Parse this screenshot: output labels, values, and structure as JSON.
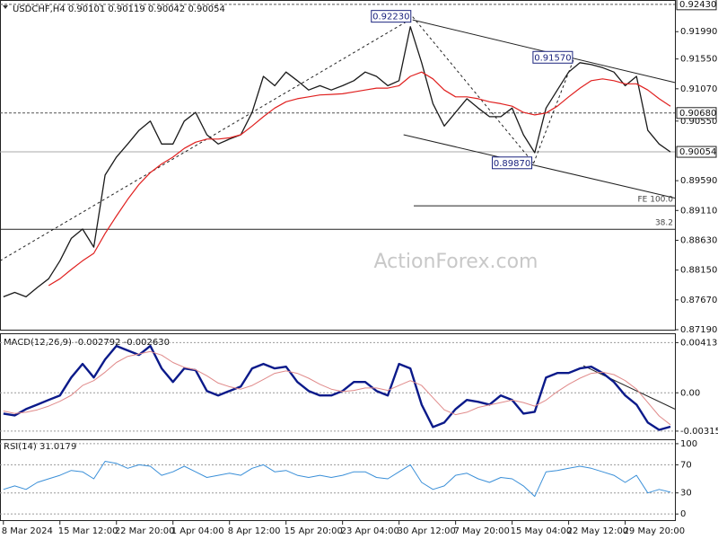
{
  "chart_data": [
    {
      "type": "line",
      "title": "USDCHF,H4  0.90101 0.90119 0.90042 0.90054",
      "x": [
        0,
        1,
        2,
        3,
        4,
        5,
        6,
        7,
        8,
        9,
        10,
        11,
        12,
        13,
        14,
        15,
        16,
        17,
        18,
        19,
        20,
        21,
        22,
        23,
        24,
        25,
        26,
        27,
        28,
        29,
        30,
        31,
        32,
        33,
        34,
        35,
        36,
        37,
        38,
        39,
        40,
        41,
        42,
        43,
        44,
        45,
        46,
        47,
        48,
        49,
        50,
        51,
        52,
        53,
        54,
        55,
        56,
        57,
        58,
        59
      ],
      "xlim": [
        -0.3,
        59.4
      ],
      "xticks": [
        {
          "value": 0,
          "label": "8 Mar 2024"
        },
        {
          "value": 5,
          "label": "15 Mar 12:00"
        },
        {
          "value": 10,
          "label": "22 Mar 20:00"
        },
        {
          "value": 15,
          "label": "1 Apr 04:00"
        },
        {
          "value": 20,
          "label": "8 Apr 12:00"
        },
        {
          "value": 25,
          "label": "15 Apr 20:00"
        },
        {
          "value": 30,
          "label": "23 Apr 04:00"
        },
        {
          "value": 35,
          "label": "30 Apr 12:00"
        },
        {
          "value": 40,
          "label": "7 May 20:00"
        },
        {
          "value": 45,
          "label": "15 May 04:00"
        },
        {
          "value": 50,
          "label": "22 May 12:00"
        },
        {
          "value": 55,
          "label": "29 May 20:00"
        }
      ],
      "ylim": [
        0.8719,
        0.925
      ],
      "yticks": [
        {
          "value": 0.9199,
          "label": "0.91990"
        },
        {
          "value": 0.9155,
          "label": "0.91550"
        },
        {
          "value": 0.9107,
          "label": "0.91070"
        },
        {
          "value": 0.9055,
          "label": "0.90550"
        },
        {
          "value": 0.8959,
          "label": "0.89590"
        },
        {
          "value": 0.8911,
          "label": "0.89110"
        },
        {
          "value": 0.8863,
          "label": "0.88630"
        },
        {
          "value": 0.8815,
          "label": "0.88150"
        },
        {
          "value": 0.8767,
          "label": "0.87670"
        },
        {
          "value": 0.8719,
          "label": "0.87190"
        }
      ],
      "grid": false,
      "series": [
        {
          "color": "#1a1a1a",
          "width": 1.3,
          "values": [
            0.8772,
            0.8779,
            0.8772,
            0.8787,
            0.8801,
            0.883,
            0.8866,
            0.8881,
            0.8852,
            0.8968,
            0.8997,
            0.9018,
            0.904,
            0.9055,
            0.9018,
            0.9018,
            0.9055,
            0.9069,
            0.9033,
            0.9018,
            0.9026,
            0.9033,
            0.9069,
            0.9127,
            0.9112,
            0.9134,
            0.912,
            0.9105,
            0.9112,
            0.9105,
            0.9112,
            0.912,
            0.9134,
            0.9127,
            0.9112,
            0.912,
            0.9207,
            0.9149,
            0.9083,
            0.9047,
            0.9069,
            0.9091,
            0.9076,
            0.9062,
            0.9062,
            0.9076,
            0.9033,
            0.9004,
            0.9076,
            0.9105,
            0.9134,
            0.9149,
            0.9146,
            0.9141,
            0.9134,
            0.9112,
            0.9127,
            0.904,
            0.9018,
            0.90054
          ]
        },
        {
          "color": "#e0201f",
          "width": 1.2,
          "values": [
            null,
            null,
            null,
            null,
            0.879,
            0.8801,
            0.8816,
            0.883,
            0.8842,
            0.8874,
            0.8902,
            0.8929,
            0.8953,
            0.8972,
            0.8986,
            0.8997,
            0.9011,
            0.9021,
            0.9026,
            0.9026,
            0.9028,
            0.9033,
            0.9047,
            0.9062,
            0.9076,
            0.9086,
            0.9091,
            0.9094,
            0.9097,
            0.9098,
            0.9099,
            0.9102,
            0.9105,
            0.9108,
            0.9108,
            0.9112,
            0.9127,
            0.9134,
            0.9123,
            0.9105,
            0.9094,
            0.9094,
            0.9091,
            0.9086,
            0.9083,
            0.9079,
            0.9069,
            0.9065,
            0.9068,
            0.9079,
            0.9094,
            0.9108,
            0.912,
            0.9123,
            0.912,
            0.9115,
            0.9115,
            0.9105,
            0.9091,
            0.9079
          ]
        }
      ],
      "levels": [
        {
          "value": 0.9243,
          "label": "0.92430",
          "style": "dashed"
        },
        {
          "value": 0.9068,
          "label": "0.90680",
          "style": "dashed"
        },
        {
          "value": 0.90054,
          "label": "0.90054",
          "style": "solid"
        }
      ],
      "fib_levels": [
        {
          "y": 0.89184,
          "text": "FE 100.0",
          "x": [
            36.3,
            59.4
          ]
        },
        {
          "y": 0.88807,
          "text": "38.2",
          "x": [
            -0.3,
            59.4
          ]
        }
      ],
      "trendlines": [
        {
          "x": [
            -0.3,
            36.2
          ],
          "y": [
            0.883,
            0.9221
          ],
          "style": "dashed"
        },
        {
          "x": [
            36.2,
            46.9
          ],
          "y": [
            0.9223,
            0.8987
          ],
          "style": "dashed"
        },
        {
          "x": [
            46.9,
            50.5
          ],
          "y": [
            0.8987,
            0.9157
          ],
          "style": "dashed"
        },
        {
          "x": [
            36.2,
            59.4
          ],
          "y": [
            0.9218,
            0.9117
          ],
          "style": "solid"
        },
        {
          "x": [
            35.4,
            59.4
          ],
          "y": [
            0.9033,
            0.8931
          ],
          "style": "solid"
        }
      ],
      "annotations": [
        {
          "text": "0.92230",
          "x": 36.2,
          "y": 0.9223
        },
        {
          "text": "0.91570",
          "x": 50.5,
          "y": 0.9157
        },
        {
          "text": "0.89870",
          "x": 46.9,
          "y": 0.8987
        }
      ],
      "watermark": "ActionForex.com"
    },
    {
      "type": "line",
      "title": "MACD(12,26,9) -0.002792 -0.002630",
      "ylim": [
        -0.0039,
        0.0049
      ],
      "yticks": [
        0.004132,
        {
          "value": 0,
          "label": "0.00"
        },
        -0.003154
      ],
      "grid": true,
      "series": [
        {
          "color": "#0b1a8a",
          "width": 2.4,
          "values": [
            -0.00171,
            -0.00186,
            -0.00134,
            -0.00097,
            -0.00059,
            -0.00022,
            0.00126,
            0.00238,
            0.00126,
            0.00275,
            0.00386,
            0.00349,
            0.00312,
            0.00386,
            0.00201,
            0.00089,
            0.00201,
            0.00186,
            0.00015,
            -0.00022,
            0.00015,
            0.00052,
            0.00201,
            0.00238,
            0.00201,
            0.00215,
            0.00089,
            0.00015,
            -0.00022,
            -0.00022,
            0.00015,
            0.00089,
            0.00089,
            0.00015,
            -0.00022,
            0.00238,
            0.00201,
            -0.00097,
            -0.00282,
            -0.00245,
            -0.00134,
            -0.00059,
            -0.00074,
            -0.00097,
            -0.00022,
            -0.00059,
            -0.00171,
            -0.00156,
            0.00126,
            0.00163,
            0.00163,
            0.00201,
            0.00215,
            0.00163,
            0.00089,
            -0.00022,
            -0.00097,
            -0.00245,
            -0.00305,
            -0.002792
          ]
        },
        {
          "color": "#e08a8a",
          "width": 1,
          "values": [
            -0.0015,
            -0.0017,
            -0.0016,
            -0.0014,
            -0.0011,
            -0.0007,
            -0.0002,
            0.0006,
            0.001,
            0.0017,
            0.0025,
            0.003,
            0.0032,
            0.0034,
            0.0031,
            0.0025,
            0.0021,
            0.0019,
            0.0014,
            0.0008,
            0.0005,
            0.0003,
            0.0006,
            0.0011,
            0.0016,
            0.0018,
            0.0016,
            0.0012,
            0.0007,
            0.0003,
            0.0001,
            0.0002,
            0.0004,
            0.0004,
            0.0002,
            0.0006,
            0.001,
            0.0006,
            -0.0004,
            -0.0014,
            -0.0018,
            -0.0016,
            -0.0012,
            -0.001,
            -0.0008,
            -0.0006,
            -0.0008,
            -0.0011,
            -0.0006,
            0.0001,
            0.0007,
            0.0012,
            0.0016,
            0.0017,
            0.0015,
            0.001,
            0.0003,
            -0.0008,
            -0.0019,
            -0.00263
          ]
        }
      ],
      "trendlines": [
        {
          "x": [
            51.3,
            59.4
          ],
          "y": [
            0.00223,
            -0.00134
          ],
          "style": "solid"
        }
      ]
    },
    {
      "type": "line",
      "title": "RSI(14) 31.0179",
      "ylim": [
        -10,
        105
      ],
      "yticks": [
        0,
        30,
        70,
        100
      ],
      "grid": true,
      "series": [
        {
          "color": "#3a8fd8",
          "width": 1,
          "values": [
            35,
            40,
            35,
            45,
            50,
            55,
            62,
            60,
            50,
            75,
            72,
            65,
            70,
            68,
            55,
            60,
            68,
            60,
            52,
            55,
            58,
            55,
            65,
            70,
            60,
            62,
            55,
            52,
            55,
            52,
            55,
            60,
            60,
            52,
            50,
            60,
            70,
            45,
            35,
            40,
            55,
            58,
            50,
            45,
            52,
            50,
            40,
            25,
            60,
            62,
            65,
            68,
            65,
            60,
            55,
            45,
            55,
            30,
            35,
            31.0179
          ]
        }
      ]
    }
  ]
}
